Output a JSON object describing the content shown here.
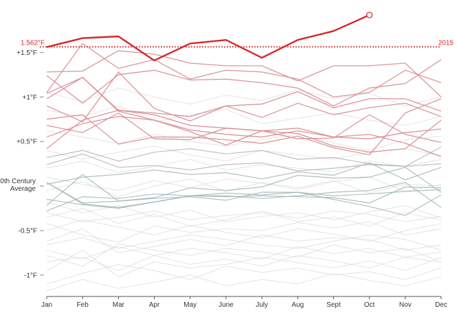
{
  "chart_data": {
    "type": "line",
    "x": [
      "Jan",
      "Feb",
      "Mar",
      "Apr",
      "May",
      "June",
      "July",
      "Aug",
      "Sept",
      "Oct",
      "Nov",
      "Dec"
    ],
    "y_ticks": [
      {
        "value": 1.5,
        "label": "+1.5°F"
      },
      {
        "value": 1.0,
        "label": "+1°F"
      },
      {
        "value": 0.5,
        "label": "+0.5°F"
      },
      {
        "value": 0.0,
        "label_lines": [
          "20th Century",
          "Average"
        ]
      },
      {
        "value": -0.5,
        "label": "-0.5°F"
      },
      {
        "value": -1.0,
        "label": "-1°F"
      }
    ],
    "ylim": [
      -1.24,
      2.05
    ],
    "grid": false,
    "reference_line": {
      "value": 1.562,
      "label": "1.562°F",
      "end_label": "2015",
      "color": "#d62728"
    },
    "highlight_series": {
      "values": [
        1.56,
        1.66,
        1.68,
        1.41,
        1.6,
        1.64,
        1.44,
        1.64,
        1.74,
        1.92
      ],
      "color": "#d62728",
      "end_marker": true
    },
    "red_series": [
      [
        1.24,
        0.93,
        1.25,
        1.3,
        1.19,
        1.2,
        1.16,
        1.1,
        0.9,
        1.1,
        1.15,
        1.42
      ],
      [
        1.05,
        1.6,
        1.32,
        1.42,
        1.2,
        1.3,
        1.28,
        1.2,
        1.0,
        1.05,
        1.3,
        1.16
      ],
      [
        1.28,
        1.29,
        1.52,
        1.48,
        1.38,
        1.35,
        1.35,
        1.18,
        1.35,
        1.35,
        1.38,
        1.0
      ],
      [
        0.98,
        1.22,
        0.85,
        0.82,
        0.78,
        0.9,
        0.92,
        1.06,
        0.88,
        0.98,
        0.98,
        0.84
      ],
      [
        0.9,
        0.72,
        1.28,
        0.87,
        0.73,
        0.9,
        0.77,
        0.93,
        0.8,
        0.88,
        0.93,
        0.78
      ],
      [
        0.68,
        0.6,
        0.82,
        0.53,
        0.52,
        0.65,
        0.62,
        0.59,
        0.45,
        0.38,
        0.42,
        0.74
      ],
      [
        0.42,
        0.74,
        0.85,
        0.8,
        0.68,
        0.65,
        0.62,
        0.65,
        0.55,
        0.53,
        0.6,
        0.64
      ],
      [
        0.75,
        0.8,
        0.47,
        0.55,
        0.55,
        0.52,
        0.48,
        0.56,
        0.43,
        0.35,
        0.82,
        0.98
      ],
      [
        0.55,
        0.7,
        0.78,
        0.74,
        0.63,
        0.58,
        0.55,
        0.62,
        0.55,
        0.58,
        0.48,
        0.33
      ],
      [
        1.04,
        1.22,
        0.84,
        0.74,
        0.61,
        0.46,
        0.62,
        0.53,
        0.54,
        0.8,
        0.58,
        0.49
      ]
    ],
    "gray_series": [
      [
        0.32,
        0.4,
        0.28,
        0.38,
        0.42,
        0.36,
        0.4,
        0.3,
        0.32,
        0.25,
        0.22,
        0.44
      ],
      [
        0.24,
        0.36,
        0.21,
        0.23,
        0.18,
        0.24,
        0.26,
        0.17,
        0.2,
        0.24,
        0.22,
        0.25
      ],
      [
        0.02,
        0.1,
        0.13,
        0.18,
        0.13,
        0.15,
        0.08,
        0.16,
        0.12,
        0.26,
        0.07,
        0.21
      ],
      [
        -0.22,
        0.13,
        -0.17,
        -0.13,
        -0.02,
        -0.05,
        -0.01,
        0.12,
        0.09,
        0.1,
        0.21,
        -0.07
      ],
      [
        0.04,
        -0.19,
        -0.17,
        -0.14,
        -0.12,
        -0.16,
        -0.07,
        -0.07,
        -0.11,
        -0.09,
        -0.06,
        -0.04
      ],
      [
        -0.15,
        -0.21,
        -0.25,
        -0.18,
        -0.11,
        -0.08,
        -0.1,
        -0.07,
        -0.15,
        -0.23,
        -0.33,
        -0.1
      ],
      [
        -0.28,
        -0.12,
        -0.14,
        -0.09,
        -0.11,
        -0.12,
        -0.11,
        -0.12,
        -0.13,
        -0.19,
        -0.01,
        -0.02
      ],
      [
        0.04,
        -0.2,
        -0.24,
        -0.18,
        -0.11,
        -0.11,
        -0.14,
        -0.11,
        -0.07,
        -0.05,
        0.04,
        -0.24
      ]
    ],
    "light_series": [
      [
        -0.42,
        -0.55,
        -0.63,
        -0.45,
        -0.52,
        -0.48,
        -0.5,
        -0.41,
        -0.47,
        -0.4,
        -0.55,
        -0.48
      ],
      [
        -0.62,
        -0.48,
        -0.75,
        -0.68,
        -0.6,
        -0.67,
        -0.55,
        -0.62,
        -0.58,
        -0.6,
        -0.72,
        -0.66
      ],
      [
        -0.78,
        -0.9,
        -0.65,
        -0.72,
        -0.78,
        -0.7,
        -0.74,
        -0.8,
        -0.66,
        -0.75,
        -0.7,
        -0.85
      ],
      [
        -0.95,
        -0.72,
        -1.02,
        -0.85,
        -0.92,
        -0.88,
        -0.8,
        -0.86,
        -0.92,
        -0.84,
        -0.95,
        -0.8
      ],
      [
        -0.3,
        -0.4,
        -0.35,
        -0.28,
        -0.38,
        -0.33,
        -0.3,
        -0.36,
        -0.28,
        -0.32,
        -0.4,
        -0.34
      ],
      [
        -0.18,
        -0.3,
        -0.22,
        -0.35,
        -0.27,
        -0.4,
        -0.34,
        -0.3,
        -0.38,
        -0.29,
        -0.22,
        -0.36
      ],
      [
        -0.5,
        -0.38,
        -0.46,
        -0.55,
        -0.44,
        -0.52,
        -0.58,
        -0.48,
        -0.54,
        -0.62,
        -0.5,
        -0.42
      ],
      [
        -1.1,
        -0.98,
        -0.88,
        -0.95,
        -1.05,
        -0.9,
        -0.97,
        -0.92,
        -1.0,
        -0.96,
        -1.05,
        -0.92
      ],
      [
        0.1,
        0.02,
        -0.05,
        0.06,
        -0.02,
        0.08,
        0.03,
        -0.04,
        0.05,
        0.1,
        -0.06,
        0.02
      ],
      [
        0.2,
        0.28,
        0.15,
        0.22,
        0.3,
        0.18,
        0.24,
        0.2,
        0.16,
        0.28,
        0.22,
        0.3
      ],
      [
        -0.66,
        -0.58,
        -0.7,
        -0.62,
        -0.55,
        -0.6,
        -0.66,
        -0.7,
        -0.62,
        -0.55,
        -0.6,
        -0.72
      ],
      [
        -0.85,
        -0.8,
        -0.95,
        -0.78,
        -0.88,
        -0.82,
        -0.9,
        -0.78,
        -0.84,
        -0.92,
        -0.8,
        -0.86
      ],
      [
        0.62,
        0.55,
        0.48,
        0.58,
        0.5,
        0.45,
        0.52,
        0.58,
        0.48,
        0.4,
        0.52,
        0.56
      ],
      [
        0.85,
        0.78,
        0.9,
        0.72,
        0.8,
        0.86,
        0.7,
        0.76,
        0.82,
        0.74,
        0.68,
        0.78
      ],
      [
        1.05,
        0.95,
        1.1,
        1.0,
        0.92,
        1.02,
        0.96,
        1.08,
        0.98,
        1.04,
        0.9,
        1.0
      ],
      [
        -1.18,
        -1.05,
        -1.15,
        -1.08,
        -1.0,
        -1.12,
        -1.05,
        -1.1,
        -0.98,
        -1.06,
        -1.12,
        -1.02
      ],
      [
        -0.35,
        -0.25,
        -0.42,
        -0.32,
        -0.45,
        -0.38,
        -0.28,
        -0.4,
        -0.35,
        -0.45,
        -0.3,
        -0.38
      ],
      [
        0.4,
        0.3,
        0.38,
        0.45,
        0.35,
        0.28,
        0.4,
        0.35,
        0.3,
        0.38,
        0.42,
        0.34
      ],
      [
        -0.05,
        0.05,
        -0.12,
        0.0,
        0.08,
        -0.06,
        0.04,
        -0.02,
        0.06,
        -0.08,
        0.02,
        0.0
      ],
      [
        -0.72,
        -0.82,
        -0.68,
        -0.78,
        -0.7,
        -0.75,
        -0.82,
        -0.68,
        -0.76,
        -0.7,
        -0.8,
        -0.74
      ]
    ]
  }
}
